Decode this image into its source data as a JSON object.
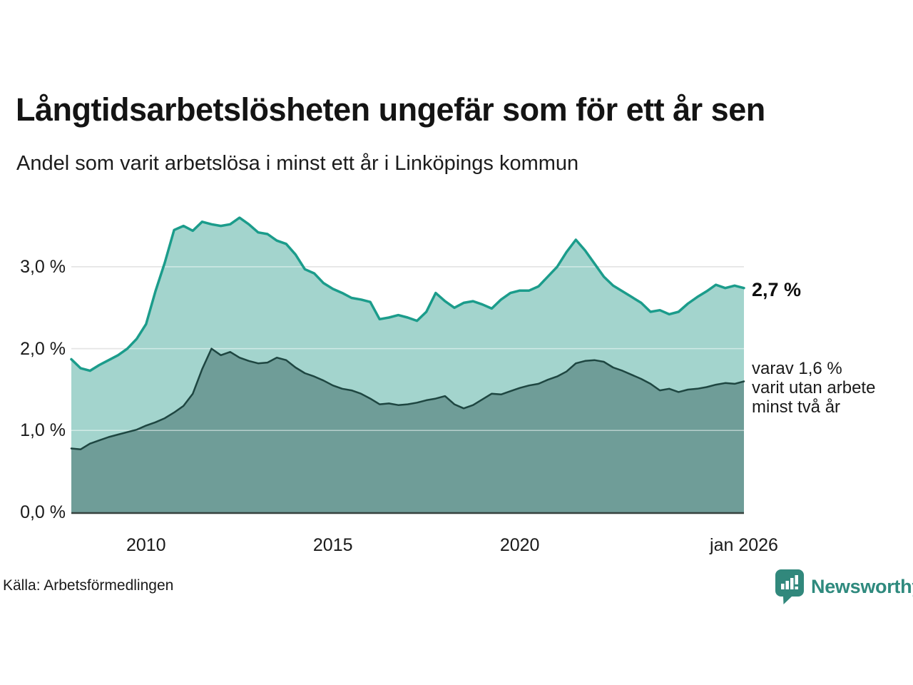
{
  "chart_data": {
    "type": "area",
    "title": "Långtidsarbetslösheten ungefär som för ett år sen",
    "subtitle": "Andel som varit arbetslösa i minst ett år i Linköpings kommun",
    "x_range": [
      2008,
      2026
    ],
    "ylim": [
      0,
      3.8
    ],
    "unit": "%",
    "grid": true,
    "legend_position": "right-annotations",
    "x": [
      2008,
      2008.25,
      2008.5,
      2008.75,
      2009,
      2009.25,
      2009.5,
      2009.75,
      2010,
      2010.25,
      2010.5,
      2010.75,
      2011,
      2011.25,
      2011.5,
      2011.75,
      2012,
      2012.25,
      2012.5,
      2012.75,
      2013,
      2013.25,
      2013.5,
      2013.75,
      2014,
      2014.25,
      2014.5,
      2014.75,
      2015,
      2015.25,
      2015.5,
      2015.75,
      2016,
      2016.25,
      2016.5,
      2016.75,
      2017,
      2017.25,
      2017.5,
      2017.75,
      2018,
      2018.25,
      2018.5,
      2018.75,
      2019,
      2019.25,
      2019.5,
      2019.75,
      2020,
      2020.25,
      2020.5,
      2020.75,
      2021,
      2021.25,
      2021.5,
      2021.75,
      2022,
      2022.25,
      2022.5,
      2022.75,
      2023,
      2023.25,
      2023.5,
      2023.75,
      2024,
      2024.25,
      2024.5,
      2024.75,
      2025,
      2025.25,
      2025.5,
      2025.75,
      2026
    ],
    "series": [
      {
        "name": "Andel som varit arbetslösa i minst ett år",
        "line_color": "#1b9c8b",
        "fill_color": "#a3d4cd",
        "line_width": 3.5,
        "values": [
          1.87,
          1.76,
          1.73,
          1.8,
          1.86,
          1.92,
          2.0,
          2.12,
          2.3,
          2.7,
          3.05,
          3.45,
          3.5,
          3.44,
          3.55,
          3.52,
          3.5,
          3.52,
          3.6,
          3.52,
          3.42,
          3.4,
          3.32,
          3.28,
          3.15,
          2.97,
          2.92,
          2.8,
          2.73,
          2.68,
          2.62,
          2.6,
          2.57,
          2.36,
          2.38,
          2.41,
          2.38,
          2.34,
          2.45,
          2.68,
          2.58,
          2.5,
          2.56,
          2.58,
          2.54,
          2.49,
          2.6,
          2.68,
          2.71,
          2.71,
          2.76,
          2.88,
          3.0,
          3.18,
          3.33,
          3.2,
          3.04,
          2.88,
          2.77,
          2.7,
          2.63,
          2.56,
          2.45,
          2.47,
          2.42,
          2.45,
          2.55,
          2.63,
          2.7,
          2.78,
          2.74,
          2.77,
          2.74
        ]
      },
      {
        "name": "varav varit utan arbete minst två år",
        "line_color": "#1e4641",
        "fill_color": "#6f9d98",
        "line_width": 2.5,
        "values": [
          0.78,
          0.77,
          0.84,
          0.88,
          0.92,
          0.95,
          0.98,
          1.01,
          1.06,
          1.1,
          1.15,
          1.22,
          1.3,
          1.45,
          1.75,
          2.0,
          1.92,
          1.96,
          1.89,
          1.85,
          1.82,
          1.83,
          1.89,
          1.86,
          1.77,
          1.7,
          1.66,
          1.61,
          1.55,
          1.51,
          1.49,
          1.45,
          1.39,
          1.32,
          1.33,
          1.31,
          1.32,
          1.34,
          1.37,
          1.39,
          1.42,
          1.32,
          1.27,
          1.31,
          1.38,
          1.45,
          1.44,
          1.48,
          1.52,
          1.55,
          1.57,
          1.62,
          1.66,
          1.72,
          1.82,
          1.85,
          1.86,
          1.84,
          1.77,
          1.73,
          1.68,
          1.63,
          1.57,
          1.49,
          1.51,
          1.47,
          1.5,
          1.51,
          1.53,
          1.56,
          1.58,
          1.57,
          1.6
        ]
      }
    ],
    "yticks": [
      {
        "value": 3,
        "label": "3,0 %"
      },
      {
        "value": 2,
        "label": "2,0 %"
      },
      {
        "value": 1,
        "label": "1,0 %"
      },
      {
        "value": 0,
        "label": "0,0 %"
      }
    ],
    "xticks": [
      {
        "value": 2010,
        "label": "2010"
      },
      {
        "value": 2015,
        "label": "2015"
      },
      {
        "value": 2020,
        "label": "2020"
      },
      {
        "value": 2026,
        "label": "jan 2026"
      }
    ],
    "end_labels": {
      "total": "2,7 %",
      "detail_lines": [
        "varav 1,6 %",
        "varit utan arbete",
        "minst två år"
      ]
    }
  },
  "footer": {
    "source": "Källa: Arbetsförmedlingen",
    "brand": "Newsworthy"
  },
  "colors": {
    "accent_teal": "#1b9c8b",
    "dark_teal": "#1e4641",
    "light_fill": "#a3d4cd",
    "dark_fill": "#6f9d98",
    "gridline": "#c9c9c9",
    "brand_teal": "#2f8a7e"
  }
}
